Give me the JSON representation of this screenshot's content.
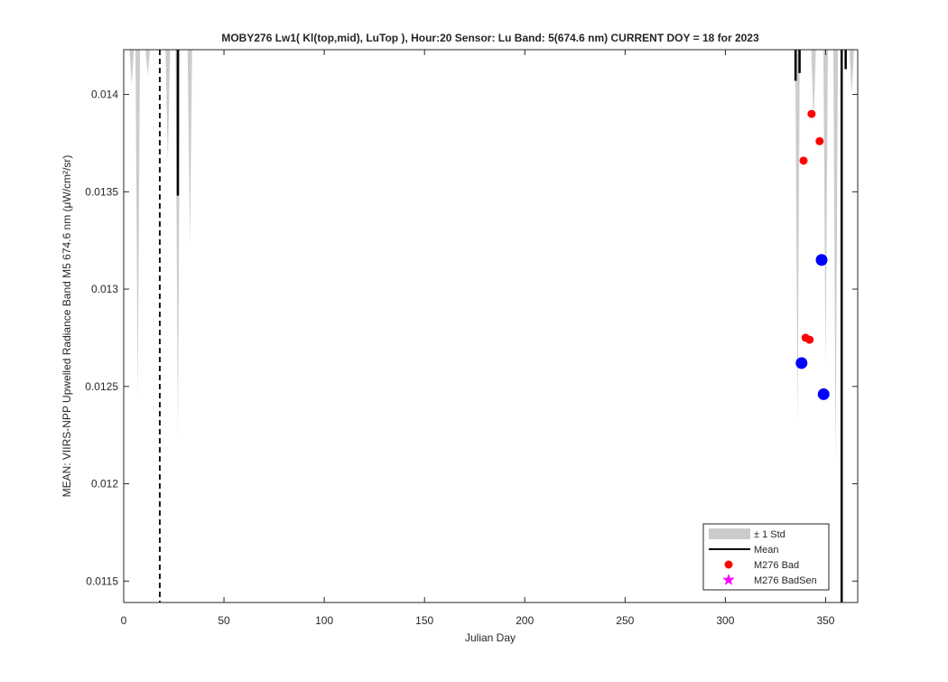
{
  "chart_data": {
    "type": "line",
    "title": "MOBY276   Lw1( Kl(top,mid), LuTop ),   Hour:20 Sensor: Lu Band: 5(674.6 nm)   CURRENT DOY = 18 for 2023",
    "xlabel": "Julian Day",
    "ylabel": "MEAN: VIIRS-NPP Upwelled Radiance Band M5 674.6 nm (μW/cm²/sr)",
    "xlim": [
      0,
      366
    ],
    "ylim": [
      0.01139,
      0.01423
    ],
    "xticks": [
      0,
      50,
      100,
      150,
      200,
      250,
      300,
      350
    ],
    "yticks": [
      0.0115,
      0.012,
      0.0125,
      0.013,
      0.0135,
      0.014
    ],
    "current_doy": 18,
    "legend": "lower right",
    "series": [
      {
        "name": "± 1 Std",
        "kind": "band",
        "color": "#cccccc",
        "x": [
          4,
          7,
          12,
          22,
          27,
          33,
          336,
          344,
          350,
          355,
          363
        ],
        "values": [
          0.01405,
          0.01244,
          0.0141,
          0.01365,
          0.01224,
          0.01322,
          0.01232,
          0.01385,
          0.0126,
          0.0121,
          0.014
        ]
      },
      {
        "name": "Mean",
        "kind": "mean",
        "color": "#000000",
        "x": [
          27,
          335,
          337,
          358,
          360
        ],
        "values": [
          0.01348,
          0.01407,
          0.01411,
          0.0113,
          0.01413
        ]
      },
      {
        "name": "M276 Bad",
        "kind": "dot",
        "color": "#ff0000",
        "x": [
          339,
          343,
          347,
          340,
          342
        ],
        "values": [
          0.01366,
          0.0139,
          0.01376,
          0.01275,
          0.01274
        ]
      },
      {
        "name": "M276 BadSen",
        "kind": "star",
        "color": "#ff00ff",
        "x": [],
        "values": []
      },
      {
        "kind": "bigdot",
        "color": "#0000ff",
        "x": [
          338,
          348,
          349
        ],
        "values": [
          0.01262,
          0.01315,
          0.01246
        ]
      }
    ]
  }
}
